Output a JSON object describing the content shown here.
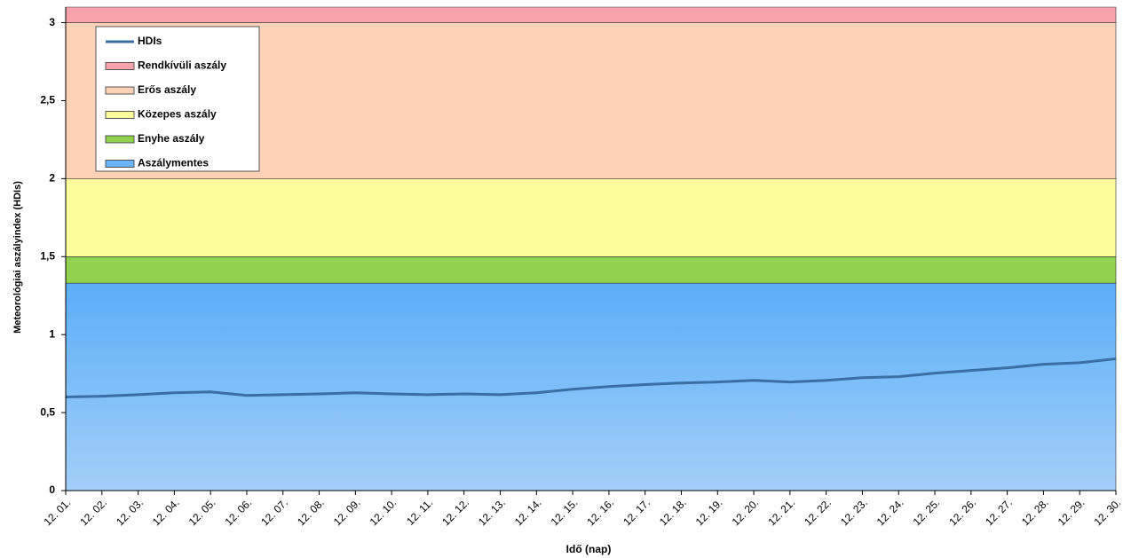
{
  "chart_data": {
    "type": "area-line",
    "x_label": "Idő (nap)",
    "y_label": "Meteorológiai aszályindex (HDIs)",
    "categories": [
      "12. 01.",
      "12. 02.",
      "12. 03.",
      "12. 04.",
      "12. 05.",
      "12. 06.",
      "12. 07.",
      "12. 08.",
      "12. 09.",
      "12. 10.",
      "12. 11.",
      "12. 12.",
      "12. 13.",
      "12. 14.",
      "12. 15.",
      "12. 16.",
      "12. 17.",
      "12. 18.",
      "12. 19.",
      "12. 20.",
      "12. 21.",
      "12. 22.",
      "12. 23.",
      "12. 24.",
      "12. 25.",
      "12. 26.",
      "12. 27.",
      "12. 28.",
      "12. 29.",
      "12. 30."
    ],
    "ylim": [
      0,
      3.1
    ],
    "yticks": [
      0,
      {
        "value": 0.5,
        "label": "0,5"
      },
      1,
      {
        "value": 1.5,
        "label": "1,5"
      },
      2,
      {
        "value": 2.5,
        "label": "2,5"
      },
      3
    ],
    "series": [
      {
        "name": "Aszálymentes",
        "kind": "area",
        "color": "#6bb4f7",
        "values": [
          1.33,
          1.33,
          1.33,
          1.33,
          1.33,
          1.33,
          1.33,
          1.33,
          1.33,
          1.33,
          1.33,
          1.33,
          1.33,
          1.33,
          1.33,
          1.33,
          1.33,
          1.33,
          1.33,
          1.33,
          1.33,
          1.33,
          1.33,
          1.33,
          1.33,
          1.33,
          1.33,
          1.33,
          1.33,
          1.33
        ]
      },
      {
        "name": "Enyhe aszály",
        "kind": "area",
        "color": "#92d050",
        "values": [
          0.17,
          0.17,
          0.17,
          0.17,
          0.17,
          0.17,
          0.17,
          0.17,
          0.17,
          0.17,
          0.17,
          0.17,
          0.17,
          0.17,
          0.17,
          0.17,
          0.17,
          0.17,
          0.17,
          0.17,
          0.17,
          0.17,
          0.17,
          0.17,
          0.17,
          0.17,
          0.17,
          0.17,
          0.17,
          0.17
        ]
      },
      {
        "name": "Közepes aszály",
        "kind": "area",
        "color": "#fdfd9d",
        "values": [
          0.5,
          0.5,
          0.5,
          0.5,
          0.5,
          0.5,
          0.5,
          0.5,
          0.5,
          0.5,
          0.5,
          0.5,
          0.5,
          0.5,
          0.5,
          0.5,
          0.5,
          0.5,
          0.5,
          0.5,
          0.5,
          0.5,
          0.5,
          0.5,
          0.5,
          0.5,
          0.5,
          0.5,
          0.5,
          0.5
        ]
      },
      {
        "name": "Erős aszály",
        "kind": "area",
        "color": "#fcd1b5",
        "values": [
          1,
          1,
          1,
          1,
          1,
          1,
          1,
          1,
          1,
          1,
          1,
          1,
          1,
          1,
          1,
          1,
          1,
          1,
          1,
          1,
          1,
          1,
          1,
          1,
          1,
          1,
          1,
          1,
          1,
          1
        ]
      },
      {
        "name": "Rendkívüli aszály",
        "kind": "area",
        "color": "#f9a3aa",
        "values": [
          0.1,
          0.1,
          0.1,
          0.1,
          0.1,
          0.1,
          0.1,
          0.1,
          0.1,
          0.1,
          0.1,
          0.1,
          0.1,
          0.1,
          0.1,
          0.1,
          0.1,
          0.1,
          0.1,
          0.1,
          0.1,
          0.1,
          0.1,
          0.1,
          0.1,
          0.1,
          0.1,
          0.1,
          0.1,
          0.1
        ]
      },
      {
        "name": "HDIs",
        "kind": "line",
        "color": "#3a6ea5",
        "values": [
          0.6,
          0.605,
          0.615,
          0.627,
          0.633,
          0.61,
          0.615,
          0.62,
          0.627,
          0.62,
          0.615,
          0.62,
          0.615,
          0.627,
          0.65,
          0.667,
          0.68,
          0.69,
          0.696,
          0.707,
          0.696,
          0.707,
          0.724,
          0.73,
          0.753,
          0.77,
          0.787,
          0.81,
          0.82,
          0.845
        ]
      }
    ]
  }
}
